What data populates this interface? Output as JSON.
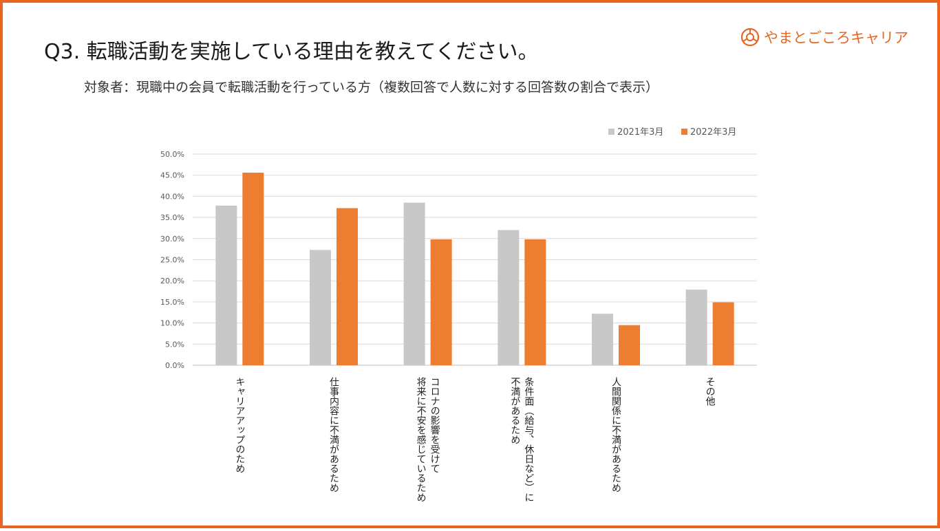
{
  "slide": {
    "title": "Q3. 転職活動を実施している理由を教えてください。",
    "subtitle": "対象者：現職中の会員で転職活動を行っている方（複数回答で人数に対する回答数の割合で表示）",
    "brand_name": "やまとごころキャリア",
    "brand_icon": "yamatogokoro-logo-icon",
    "border_color": "#E8651F"
  },
  "chart_data": {
    "type": "bar",
    "title": "",
    "xlabel": "",
    "ylabel": "",
    "ylim": [
      0,
      0.5
    ],
    "yticks": [
      0,
      0.05,
      0.1,
      0.15,
      0.2,
      0.25,
      0.3,
      0.35,
      0.4,
      0.45,
      0.5
    ],
    "ytick_labels": [
      "0.0%",
      "5.0%",
      "10.0%",
      "15.0%",
      "20.0%",
      "25.0%",
      "30.0%",
      "35.0%",
      "40.0%",
      "45.0%",
      "50.0%"
    ],
    "grid": true,
    "legend_position": "top-right",
    "categories": [
      [
        "キャリアアップのため"
      ],
      [
        "仕事内容に不満があるため"
      ],
      [
        "コロナの影響を受けて",
        "将来に不安を感じているため"
      ],
      [
        "条件面（給与、休日など）に",
        "不満があるため"
      ],
      [
        "人間関係に不満があるため"
      ],
      [
        "その他"
      ]
    ],
    "series": [
      {
        "name": "2021年3月",
        "color": "#C8C8C8",
        "values": [
          0.378,
          0.273,
          0.385,
          0.32,
          0.122,
          0.179
        ]
      },
      {
        "name": "2022年3月",
        "color": "#ED7D31",
        "values": [
          0.456,
          0.372,
          0.298,
          0.298,
          0.095,
          0.149
        ]
      }
    ]
  }
}
